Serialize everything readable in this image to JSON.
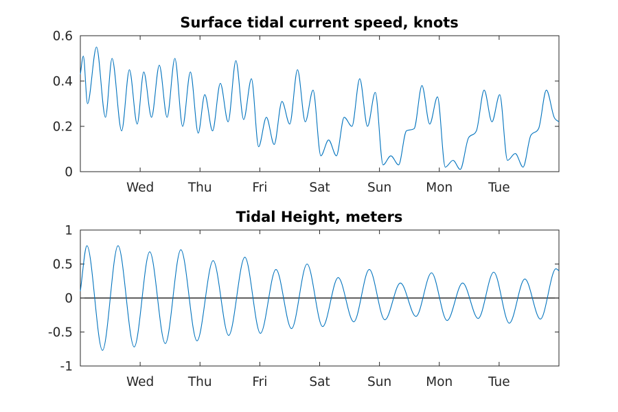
{
  "colors": {
    "series": "#0072bd",
    "zero_line": "#000000",
    "axes": "#262626"
  },
  "chart_data": [
    {
      "type": "line",
      "title": "Surface tidal current speed, knots",
      "xlabel": "",
      "ylabel": "",
      "xlim": [
        0,
        8
      ],
      "ylim": [
        0,
        0.6
      ],
      "yticks": [
        0,
        0.2,
        0.4,
        0.6
      ],
      "ytick_labels": [
        "0",
        "0.2",
        "0.4",
        "0.6"
      ],
      "xticks": [
        1,
        2,
        3,
        4,
        5,
        6,
        7
      ],
      "xtick_labels": [
        "Wed",
        "Thu",
        "Fri",
        "Sat",
        "Sun",
        "Mon",
        "Tue"
      ],
      "grid": false,
      "series": [
        {
          "x": [
            0,
            0.05,
            0.12,
            0.27,
            0.42,
            0.53,
            0.69,
            0.82,
            0.95,
            1.06,
            1.19,
            1.32,
            1.45,
            1.58,
            1.71,
            1.84,
            1.97,
            2.08,
            2.21,
            2.34,
            2.47,
            2.6,
            2.73,
            2.86,
            2.98,
            3.11,
            3.24,
            3.37,
            3.5,
            3.63,
            3.76,
            3.89,
            4.02,
            4.15,
            4.28,
            4.41,
            4.54,
            4.67,
            4.8,
            4.93,
            5.06,
            5.19,
            5.32,
            5.45,
            5.58,
            5.71,
            5.84,
            5.97,
            6.1,
            6.23,
            6.35,
            6.49,
            6.62,
            6.75,
            6.88,
            7.01,
            7.14,
            7.27,
            7.4,
            7.53,
            7.66,
            7.79,
            7.92,
            8.0
          ],
          "y": [
            0.43,
            0.51,
            0.3,
            0.55,
            0.24,
            0.5,
            0.18,
            0.45,
            0.21,
            0.44,
            0.24,
            0.47,
            0.24,
            0.5,
            0.2,
            0.44,
            0.17,
            0.34,
            0.18,
            0.39,
            0.22,
            0.49,
            0.23,
            0.41,
            0.11,
            0.24,
            0.12,
            0.31,
            0.21,
            0.45,
            0.22,
            0.36,
            0.07,
            0.14,
            0.07,
            0.24,
            0.2,
            0.41,
            0.2,
            0.35,
            0.03,
            0.07,
            0.03,
            0.18,
            0.19,
            0.38,
            0.21,
            0.33,
            0.02,
            0.05,
            0.01,
            0.15,
            0.18,
            0.36,
            0.22,
            0.34,
            0.05,
            0.08,
            0.02,
            0.16,
            0.19,
            0.36,
            0.24,
            0.22
          ]
        }
      ]
    },
    {
      "type": "line",
      "title": "Tidal Height, meters",
      "xlabel": "",
      "ylabel": "",
      "xlim": [
        0,
        8
      ],
      "ylim": [
        -1,
        1
      ],
      "yticks": [
        -1,
        -0.5,
        0,
        0.5,
        1
      ],
      "ytick_labels": [
        "-1",
        "-0.5",
        "0",
        "0.5",
        "1"
      ],
      "xticks": [
        1,
        2,
        3,
        4,
        5,
        6,
        7
      ],
      "xtick_labels": [
        "Wed",
        "Thu",
        "Fri",
        "Sat",
        "Sun",
        "Mon",
        "Tue"
      ],
      "grid": false,
      "zero_line": true,
      "series": [
        {
          "x": [
            0,
            0.11,
            0.37,
            0.63,
            0.9,
            1.16,
            1.42,
            1.68,
            1.95,
            2.22,
            2.48,
            2.75,
            3.01,
            3.27,
            3.53,
            3.79,
            4.05,
            4.31,
            4.57,
            4.83,
            5.09,
            5.35,
            5.61,
            5.87,
            6.13,
            6.39,
            6.65,
            6.91,
            7.17,
            7.43,
            7.69,
            7.95,
            8.0
          ],
          "y": [
            0.1,
            0.77,
            -0.77,
            0.77,
            -0.72,
            0.68,
            -0.67,
            0.71,
            -0.63,
            0.55,
            -0.55,
            0.6,
            -0.52,
            0.42,
            -0.45,
            0.5,
            -0.42,
            0.3,
            -0.35,
            0.42,
            -0.32,
            0.22,
            -0.27,
            0.37,
            -0.33,
            0.22,
            -0.3,
            0.38,
            -0.37,
            0.28,
            -0.31,
            0.43,
            0.4
          ]
        }
      ]
    }
  ]
}
